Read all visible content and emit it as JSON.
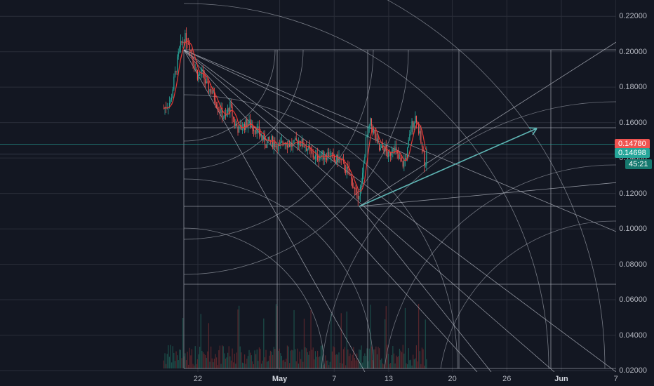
{
  "chart_data": {
    "type": "candlestick",
    "y_axis": {
      "ticks": [
        "0.22000",
        "0.20000",
        "0.18000",
        "0.16000",
        "0.14000",
        "0.12000",
        "0.10000",
        "0.08000",
        "0.06000",
        "0.04000",
        "0.02000"
      ],
      "tick_values": [
        0.22,
        0.2,
        0.18,
        0.16,
        0.14,
        0.12,
        0.1,
        0.08,
        0.06,
        0.04,
        0.02
      ],
      "range": [
        0.0192,
        0.2292
      ]
    },
    "x_axis": {
      "ticks": [
        {
          "label": "22",
          "bold": false,
          "date": "2019-04-22"
        },
        {
          "label": "May",
          "bold": true,
          "date": "2019-05-01"
        },
        {
          "label": "7",
          "bold": false,
          "date": "2019-05-07"
        },
        {
          "label": "13",
          "bold": false,
          "date": "2019-05-13"
        },
        {
          "label": "20",
          "bold": false,
          "date": "2019-05-20"
        },
        {
          "label": "26",
          "bold": false,
          "date": "2019-05-26"
        },
        {
          "label": "Jun",
          "bold": true,
          "date": "2019-06-01"
        },
        {
          "label": "7",
          "bold": false,
          "date": "2019-06-07"
        }
      ]
    },
    "price_badges": {
      "last_price": "0.14780",
      "second_price": "0.14698",
      "countdown": "45:21"
    },
    "price_path": [
      [
        "2019-04-18T06:00",
        0.168
      ],
      [
        "2019-04-19T00:00",
        0.172
      ],
      [
        "2019-04-19T12:00",
        0.188
      ],
      [
        "2019-04-20T00:00",
        0.202
      ],
      [
        "2019-04-20T12:00",
        0.208
      ],
      [
        "2019-04-21T00:00",
        0.206
      ],
      [
        "2019-04-21T12:00",
        0.194
      ],
      [
        "2019-04-22T00:00",
        0.186
      ],
      [
        "2019-04-22T12:00",
        0.188
      ],
      [
        "2019-04-23T00:00",
        0.18
      ],
      [
        "2019-04-23T12:00",
        0.178
      ],
      [
        "2019-04-24T00:00",
        0.172
      ],
      [
        "2019-04-24T12:00",
        0.166
      ],
      [
        "2019-04-25T00:00",
        0.162
      ],
      [
        "2019-04-25T12:00",
        0.17
      ],
      [
        "2019-04-26T00:00",
        0.16
      ],
      [
        "2019-04-26T12:00",
        0.156
      ],
      [
        "2019-04-27T00:00",
        0.158
      ],
      [
        "2019-04-27T12:00",
        0.16
      ],
      [
        "2019-04-28T00:00",
        0.158
      ],
      [
        "2019-04-28T12:00",
        0.156
      ],
      [
        "2019-04-29T00:00",
        0.152
      ],
      [
        "2019-04-29T12:00",
        0.148
      ],
      [
        "2019-04-30T00:00",
        0.15
      ],
      [
        "2019-04-30T12:00",
        0.148
      ],
      [
        "2019-05-01T00:00",
        0.146
      ],
      [
        "2019-05-01T12:00",
        0.15
      ],
      [
        "2019-05-02T00:00",
        0.148
      ],
      [
        "2019-05-02T12:00",
        0.147
      ],
      [
        "2019-05-03T00:00",
        0.15
      ],
      [
        "2019-05-03T12:00",
        0.148
      ],
      [
        "2019-05-04T00:00",
        0.146
      ],
      [
        "2019-05-04T12:00",
        0.142
      ],
      [
        "2019-05-05T00:00",
        0.14
      ],
      [
        "2019-05-05T12:00",
        0.142
      ],
      [
        "2019-05-06T00:00",
        0.141
      ],
      [
        "2019-05-06T12:00",
        0.143
      ],
      [
        "2019-05-07T00:00",
        0.138
      ],
      [
        "2019-05-07T12:00",
        0.14
      ],
      [
        "2019-05-08T00:00",
        0.136
      ],
      [
        "2019-05-08T12:00",
        0.132
      ],
      [
        "2019-05-09T00:00",
        0.126
      ],
      [
        "2019-05-09T12:00",
        0.118
      ],
      [
        "2019-05-10T00:00",
        0.124
      ],
      [
        "2019-05-10T12:00",
        0.15
      ],
      [
        "2019-05-11T00:00",
        0.16
      ],
      [
        "2019-05-11T12:00",
        0.152
      ],
      [
        "2019-05-12T00:00",
        0.144
      ],
      [
        "2019-05-12T12:00",
        0.146
      ],
      [
        "2019-05-13T00:00",
        0.14
      ],
      [
        "2019-05-13T12:00",
        0.148
      ],
      [
        "2019-05-14T00:00",
        0.14
      ],
      [
        "2019-05-14T12:00",
        0.136
      ],
      [
        "2019-05-15T00:00",
        0.142
      ],
      [
        "2019-05-15T12:00",
        0.158
      ],
      [
        "2019-05-16T00:00",
        0.164
      ],
      [
        "2019-05-16T12:00",
        0.15
      ],
      [
        "2019-05-17T00:00",
        0.136
      ],
      [
        "2019-05-17T06:00",
        0.1478
      ]
    ],
    "moving_average_color": "#e53935",
    "up_color": "#26a69a",
    "down_color": "#ef5350",
    "gann_fan_color": "#b8bcc6",
    "trend_arrow_color": "#5fb6b5",
    "grid_color": "#2a2e39",
    "background": "#131722"
  }
}
